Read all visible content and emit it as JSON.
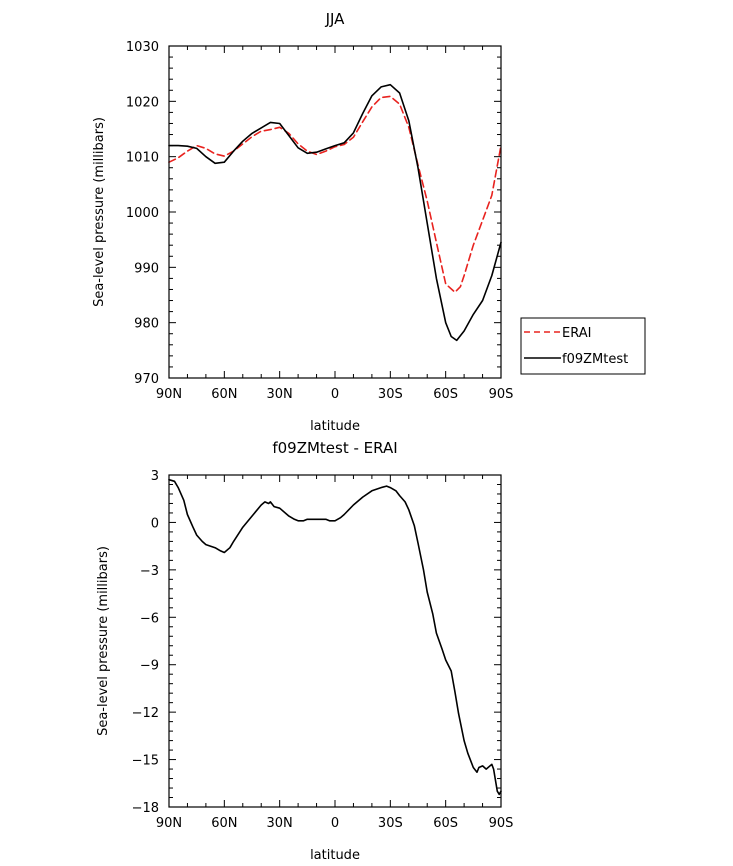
{
  "chart_data": [
    {
      "type": "line",
      "title": "JJA",
      "xlabel": "latitude",
      "ylabel": "Sea-level pressure (millibars)",
      "x_ticks": [
        {
          "value": 90,
          "label": "90N"
        },
        {
          "value": 60,
          "label": "60N"
        },
        {
          "value": 30,
          "label": "30N"
        },
        {
          "value": 0,
          "label": "0"
        },
        {
          "value": -30,
          "label": "30S"
        },
        {
          "value": -60,
          "label": "60S"
        },
        {
          "value": -90,
          "label": "90S"
        }
      ],
      "xlim": [
        90,
        -90
      ],
      "ylim": [
        970,
        1030
      ],
      "y_ticks": [
        970,
        980,
        990,
        1000,
        1010,
        1020,
        1030
      ],
      "legend": {
        "placement": "right"
      },
      "series": [
        {
          "name": "ERAI",
          "color": "#e8231f",
          "style": "dashed",
          "x": [
            90,
            85,
            80,
            75,
            70,
            65,
            60,
            55,
            50,
            45,
            40,
            35,
            30,
            25,
            20,
            15,
            10,
            5,
            0,
            -5,
            -10,
            -15,
            -20,
            -25,
            -30,
            -35,
            -40,
            -45,
            -50,
            -55,
            -60,
            -65,
            -68,
            -70,
            -75,
            -80,
            -85,
            -90
          ],
          "y": [
            1009.0,
            1009.8,
            1011.0,
            1012.0,
            1011.5,
            1010.5,
            1010.1,
            1011.0,
            1012.3,
            1013.6,
            1014.6,
            1014.9,
            1015.3,
            1014.2,
            1012.3,
            1011.0,
            1010.4,
            1011.0,
            1011.8,
            1012.2,
            1013.5,
            1016.3,
            1019.0,
            1020.7,
            1020.9,
            1019.5,
            1015.3,
            1008.5,
            1002.0,
            994.5,
            987.0,
            985.5,
            986.5,
            988.5,
            994.0,
            998.5,
            1003.0,
            1012.0
          ]
        },
        {
          "name": "f09ZMtest",
          "color": "#000000",
          "style": "solid",
          "x": [
            90,
            85,
            80,
            75,
            70,
            65,
            60,
            55,
            50,
            45,
            40,
            35,
            30,
            25,
            20,
            15,
            10,
            5,
            0,
            -5,
            -10,
            -15,
            -20,
            -25,
            -30,
            -35,
            -40,
            -45,
            -50,
            -55,
            -60,
            -63,
            -66,
            -70,
            -75,
            -80,
            -85,
            -90
          ],
          "y": [
            1012.0,
            1012.0,
            1011.9,
            1011.5,
            1010.0,
            1008.8,
            1009.0,
            1011.0,
            1012.8,
            1014.2,
            1015.2,
            1016.2,
            1016.0,
            1013.8,
            1011.6,
            1010.6,
            1010.8,
            1011.4,
            1012.0,
            1012.5,
            1014.3,
            1017.8,
            1021.0,
            1022.6,
            1023.0,
            1021.5,
            1016.5,
            1008.0,
            998.0,
            988.0,
            980.0,
            977.5,
            976.8,
            978.5,
            981.5,
            984.0,
            988.5,
            994.5
          ]
        }
      ]
    },
    {
      "type": "line",
      "title": "f09ZMtest - ERAI",
      "xlabel": "latitude",
      "ylabel": "Sea-level pressure (millibars)",
      "x_ticks": [
        {
          "value": 90,
          "label": "90N"
        },
        {
          "value": 60,
          "label": "60N"
        },
        {
          "value": 30,
          "label": "30N"
        },
        {
          "value": 0,
          "label": "0"
        },
        {
          "value": -30,
          "label": "30S"
        },
        {
          "value": -60,
          "label": "60S"
        },
        {
          "value": -90,
          "label": "90S"
        }
      ],
      "xlim": [
        90,
        -90
      ],
      "ylim": [
        -18,
        3
      ],
      "y_ticks": [
        3,
        0,
        -3,
        -6,
        -9,
        -12,
        -15,
        -18
      ],
      "series": [
        {
          "color": "#000000",
          "style": "solid",
          "x": [
            90,
            87,
            85,
            82,
            80,
            77,
            75,
            72,
            70,
            65,
            62,
            60,
            57,
            55,
            50,
            45,
            40,
            38,
            36,
            35,
            33,
            30,
            25,
            22,
            20,
            17,
            15,
            12,
            10,
            7,
            5,
            3,
            0,
            -3,
            -5,
            -10,
            -15,
            -20,
            -25,
            -28,
            -30,
            -33,
            -35,
            -38,
            -40,
            -43,
            -45,
            -48,
            -50,
            -53,
            -55,
            -58,
            -60,
            -63,
            -65,
            -67,
            -70,
            -72,
            -75,
            -77,
            -78,
            -80,
            -82,
            -85,
            -86,
            -88,
            -89,
            -90
          ],
          "y": [
            2.7,
            2.6,
            2.2,
            1.4,
            0.5,
            -0.3,
            -0.8,
            -1.2,
            -1.4,
            -1.6,
            -1.8,
            -1.9,
            -1.6,
            -1.2,
            -0.3,
            0.4,
            1.1,
            1.3,
            1.2,
            1.3,
            1.0,
            0.9,
            0.4,
            0.2,
            0.1,
            0.1,
            0.2,
            0.2,
            0.2,
            0.2,
            0.2,
            0.1,
            0.1,
            0.3,
            0.5,
            1.1,
            1.6,
            2.0,
            2.2,
            2.3,
            2.2,
            2.0,
            1.7,
            1.3,
            0.8,
            -0.2,
            -1.3,
            -3.0,
            -4.4,
            -5.8,
            -7.0,
            -8.0,
            -8.7,
            -9.4,
            -10.7,
            -12.1,
            -13.8,
            -14.6,
            -15.5,
            -15.8,
            -15.5,
            -15.4,
            -15.6,
            -15.3,
            -15.6,
            -17.0,
            -17.2,
            -17.0
          ]
        }
      ]
    }
  ]
}
